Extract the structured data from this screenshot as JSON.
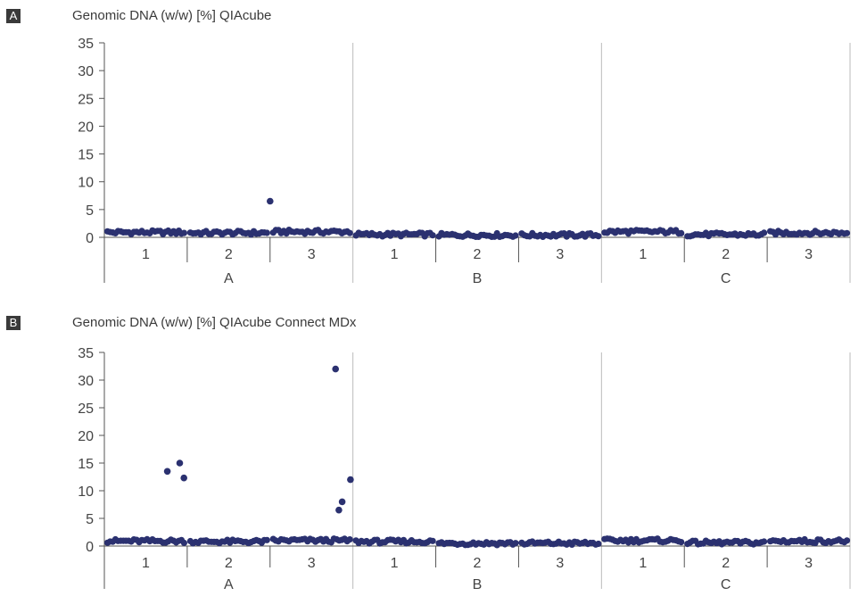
{
  "colors": {
    "point": "#2b3170",
    "axis": "#555555",
    "frame": "#bbbbbb",
    "text": "#444444",
    "badge": "#3a3a3a"
  },
  "chart_data": [
    {
      "type": "scatter",
      "badge": "A",
      "title": "Genomic DNA (w/w) [%] QIAcube",
      "ylim": [
        0,
        35
      ],
      "yticks": [
        0,
        5,
        10,
        15,
        20,
        25,
        30,
        35
      ],
      "groups": [
        {
          "label": "A",
          "subgroups": [
            "1",
            "2",
            "3"
          ]
        },
        {
          "label": "B",
          "subgroups": [
            "1",
            "2",
            "3"
          ]
        },
        {
          "label": "C",
          "subgroups": [
            "1",
            "2",
            "3"
          ]
        }
      ],
      "points_per_subgroup": 30,
      "baseline": [
        [
          0.9,
          0.8,
          1.0
        ],
        [
          0.5,
          0.4,
          0.4
        ],
        [
          1.0,
          0.5,
          0.8
        ]
      ],
      "outliers": [
        {
          "group": 0,
          "subgroup": 2,
          "pos": 0.0,
          "value": 6.5
        }
      ]
    },
    {
      "type": "scatter",
      "badge": "B",
      "title": "Genomic DNA (w/w) [%] QIAcube Connect MDx",
      "ylim": [
        0,
        35
      ],
      "yticks": [
        0,
        5,
        10,
        15,
        20,
        25,
        30,
        35
      ],
      "groups": [
        {
          "label": "A",
          "subgroups": [
            "1",
            "2",
            "3"
          ]
        },
        {
          "label": "B",
          "subgroups": [
            "1",
            "2",
            "3"
          ]
        },
        {
          "label": "C",
          "subgroups": [
            "1",
            "2",
            "3"
          ]
        }
      ],
      "points_per_subgroup": 30,
      "baseline": [
        [
          0.9,
          0.8,
          1.0
        ],
        [
          0.8,
          0.5,
          0.5
        ],
        [
          1.0,
          0.6,
          0.9
        ]
      ],
      "outliers": [
        {
          "group": 0,
          "subgroup": 0,
          "pos": 0.76,
          "value": 13.5
        },
        {
          "group": 0,
          "subgroup": 0,
          "pos": 0.91,
          "value": 15.0
        },
        {
          "group": 0,
          "subgroup": 0,
          "pos": 0.96,
          "value": 12.3
        },
        {
          "group": 0,
          "subgroup": 2,
          "pos": 0.79,
          "value": 32.0
        },
        {
          "group": 0,
          "subgroup": 2,
          "pos": 0.83,
          "value": 6.5
        },
        {
          "group": 0,
          "subgroup": 2,
          "pos": 0.87,
          "value": 8.0
        },
        {
          "group": 0,
          "subgroup": 2,
          "pos": 0.97,
          "value": 12.0
        }
      ]
    }
  ]
}
